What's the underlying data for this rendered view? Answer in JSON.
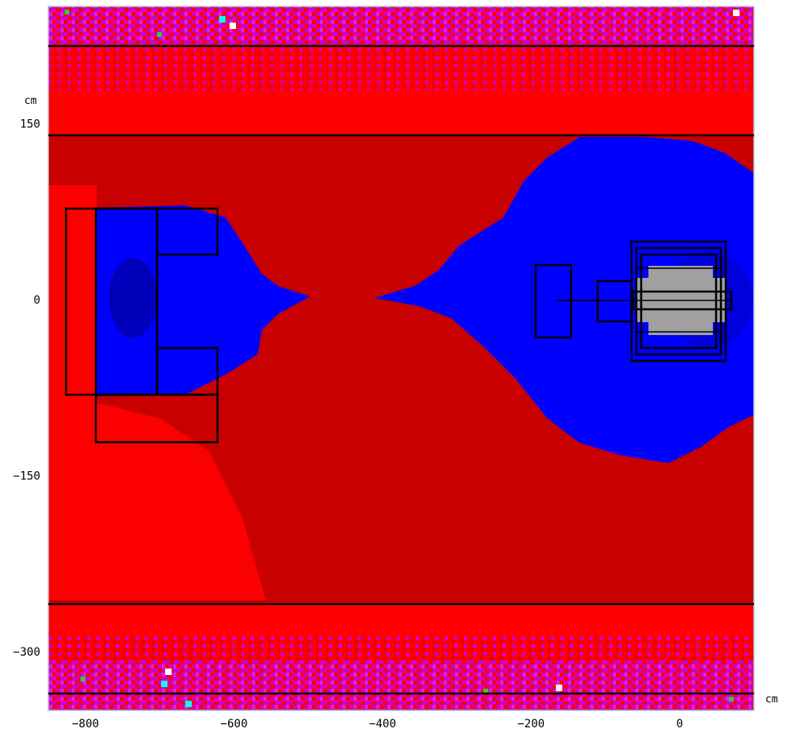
{
  "plot": {
    "x_axis": {
      "unit": "cm",
      "range": [
        -850,
        100
      ],
      "ticks": [
        -800,
        -600,
        -400,
        -200,
        0
      ]
    },
    "y_axis": {
      "unit": "cm",
      "range": [
        -350,
        250
      ],
      "ticks": [
        150,
        0,
        -150,
        -300
      ]
    },
    "colors": {
      "dark_red": "#c80000",
      "red": "#ff0000",
      "magenta": "#cc00cc",
      "blue": "#0000ff",
      "dark_blue": "#0000bb",
      "grey": "#a0a0a0",
      "green": "#33cc33",
      "cyan": "#00ffff",
      "white": "#ffffff",
      "frame": "#aac8e0"
    }
  }
}
